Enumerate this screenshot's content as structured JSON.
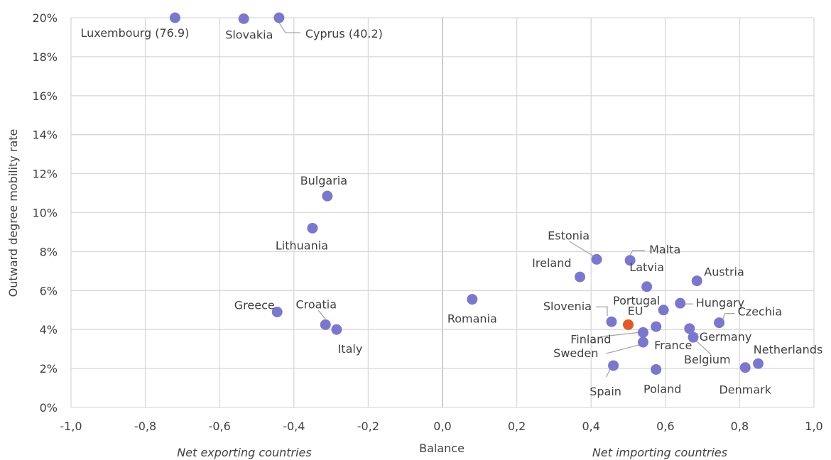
{
  "chart_data": {
    "type": "scatter",
    "xlabel": "Balance",
    "ylabel": "Outward degree mobility rate",
    "xlim": [
      -1.0,
      1.0
    ],
    "ylim": [
      0,
      20
    ],
    "x_ticks": [
      -1.0,
      -0.8,
      -0.6,
      -0.4,
      -0.2,
      0.0,
      0.2,
      0.4,
      0.6,
      0.8,
      1.0
    ],
    "x_tick_labels": [
      "-1,0",
      "-0,8",
      "-0,6",
      "-0,4",
      "-0,2",
      "0,0",
      "0,2",
      "0,4",
      "0,6",
      "0,8",
      "1,0"
    ],
    "y_ticks": [
      0,
      2,
      4,
      6,
      8,
      10,
      12,
      14,
      16,
      18,
      20
    ],
    "y_tick_labels": [
      "0%",
      "2%",
      "4%",
      "6%",
      "8%",
      "10%",
      "12%",
      "14%",
      "16%",
      "18%",
      "20%"
    ],
    "grid": true,
    "annotations": {
      "left": "Net exporting countries",
      "right": "Net importing countries"
    },
    "colors": {
      "country": "#7b78cc",
      "eu": "#e05a2b"
    },
    "points": [
      {
        "label": "Luxembourg (76.9)",
        "x": -0.72,
        "y": 20.0
      },
      {
        "label": "Slovakia",
        "x": -0.535,
        "y": 19.95
      },
      {
        "label": "Cyprus (40.2)",
        "x": -0.44,
        "y": 20.0
      },
      {
        "label": "Bulgaria",
        "x": -0.31,
        "y": 10.85
      },
      {
        "label": "Lithuania",
        "x": -0.35,
        "y": 9.2
      },
      {
        "label": "Greece",
        "x": -0.445,
        "y": 4.9
      },
      {
        "label": "Croatia",
        "x": -0.315,
        "y": 4.25
      },
      {
        "label": "Italy",
        "x": -0.285,
        "y": 4.0
      },
      {
        "label": "Romania",
        "x": 0.08,
        "y": 5.55
      },
      {
        "label": "Estonia",
        "x": 0.415,
        "y": 7.6
      },
      {
        "label": "Malta",
        "x": 0.505,
        "y": 7.55
      },
      {
        "label": "Ireland",
        "x": 0.37,
        "y": 6.7
      },
      {
        "label": "Latvia",
        "x": 0.55,
        "y": 6.2
      },
      {
        "label": "Austria",
        "x": 0.685,
        "y": 6.5
      },
      {
        "label": "Portugal",
        "x": 0.595,
        "y": 5.0
      },
      {
        "label": "Hungary",
        "x": 0.64,
        "y": 5.35
      },
      {
        "label": "Czechia",
        "x": 0.745,
        "y": 4.35
      },
      {
        "label": "Slovenia",
        "x": 0.455,
        "y": 4.4
      },
      {
        "label": "EU",
        "x": 0.5,
        "y": 4.25,
        "eu": true
      },
      {
        "label": "",
        "x": 0.575,
        "y": 4.15
      },
      {
        "label": "Germany",
        "x": 0.665,
        "y": 4.05
      },
      {
        "label": "Finland",
        "x": 0.54,
        "y": 3.85
      },
      {
        "label": "Belgium",
        "x": 0.675,
        "y": 3.6
      },
      {
        "label": "Sweden",
        "x": 0.54,
        "y": 3.35
      },
      {
        "label": "France",
        "x": 0.0,
        "y": 0.0,
        "hidden": true
      },
      {
        "label": "Spain",
        "x": 0.46,
        "y": 2.15
      },
      {
        "label": "Poland",
        "x": 0.575,
        "y": 1.95
      },
      {
        "label": "Denmark",
        "x": 0.815,
        "y": 2.05
      },
      {
        "label": "Netherlands",
        "x": 0.85,
        "y": 2.25
      }
    ]
  }
}
